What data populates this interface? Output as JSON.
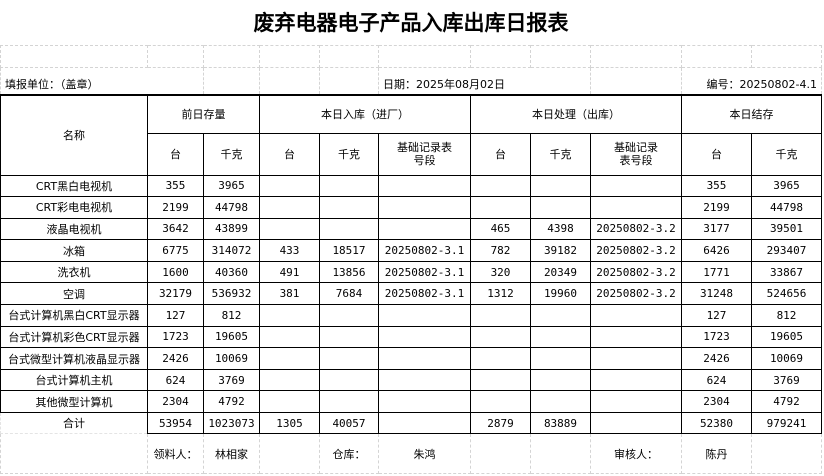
{
  "title": "废弃电器电子产品入库出库日报表",
  "info": {
    "unit_label": "填报单位：（盖章）",
    "date_label": "日期：",
    "date_value": "2025年08月02日",
    "number_label": "编号：20250802-4.1"
  },
  "headers": {
    "name": "名称",
    "prev_stock": "前日存量",
    "today_in": "本日入库（进厂）",
    "today_out": "本日处理（出库）",
    "today_balance": "本日结存",
    "unit": "台",
    "kg": "千克",
    "record_no": "基础记录表号段"
  },
  "rows": [
    [
      "CRT黑白电视机",
      "355",
      "3965",
      "",
      "",
      "",
      "",
      "",
      "",
      "355",
      "3965"
    ],
    [
      "CRT彩电电视机",
      "2199",
      "44798",
      "",
      "",
      "",
      "",
      "",
      "",
      "2199",
      "44798"
    ],
    [
      "液晶电视机",
      "3642",
      "43899",
      "",
      "",
      "",
      "465",
      "4398",
      "20250802-3.2",
      "3177",
      "39501"
    ],
    [
      "冰箱",
      "6775",
      "314072",
      "433",
      "18517",
      "20250802-3.1",
      "782",
      "39182",
      "20250802-3.2",
      "6426",
      "293407"
    ],
    [
      "洗衣机",
      "1600",
      "40360",
      "491",
      "13856",
      "20250802-3.1",
      "320",
      "20349",
      "20250802-3.2",
      "1771",
      "33867"
    ],
    [
      "空调",
      "32179",
      "536932",
      "381",
      "7684",
      "20250802-3.1",
      "1312",
      "19960",
      "20250802-3.2",
      "31248",
      "524656"
    ],
    [
      "台式计算机黑白CRT显示器",
      "127",
      "812",
      "",
      "",
      "",
      "",
      "",
      "",
      "127",
      "812"
    ],
    [
      "台式计算机彩色CRT显示器",
      "1723",
      "19605",
      "",
      "",
      "",
      "",
      "",
      "",
      "1723",
      "19605"
    ],
    [
      "台式微型计算机液晶显示器",
      "2426",
      "10069",
      "",
      "",
      "",
      "",
      "",
      "",
      "2426",
      "10069"
    ],
    [
      "台式计算机主机",
      "624",
      "3769",
      "",
      "",
      "",
      "",
      "",
      "",
      "624",
      "3769"
    ],
    [
      "其他微型计算机",
      "2304",
      "4792",
      "",
      "",
      "",
      "",
      "",
      "",
      "2304",
      "4792"
    ]
  ],
  "total": [
    "合计",
    "53954",
    "1023073",
    "1305",
    "40057",
    "",
    "2879",
    "83889",
    "",
    "52380",
    "979241"
  ],
  "footer": {
    "receiver_label": "领料人：",
    "receiver": "林相家",
    "warehouse_label": "仓库：",
    "warehouse": "朱鸿",
    "reviewer_label": "审核人：",
    "reviewer": "陈丹"
  }
}
